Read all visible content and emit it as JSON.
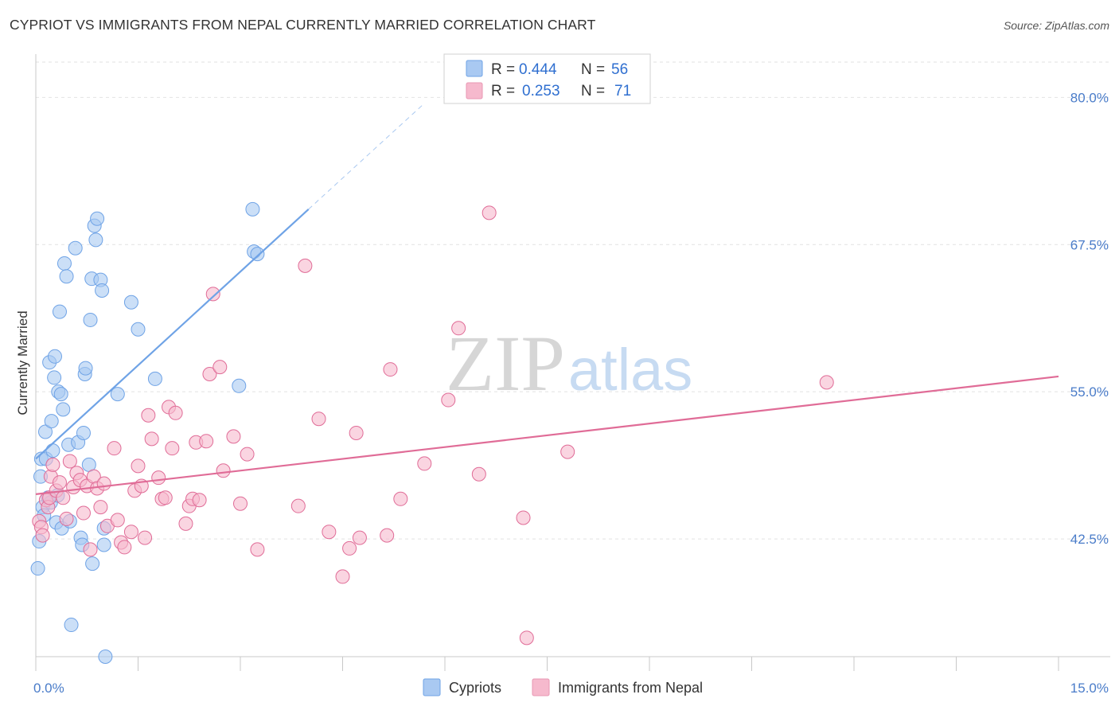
{
  "header": {
    "title": "CYPRIOT VS IMMIGRANTS FROM NEPAL CURRENTLY MARRIED CORRELATION CHART",
    "source": "Source: ZipAtlas.com"
  },
  "watermark": {
    "part1": "ZIP",
    "part2": "atlas"
  },
  "legend": {
    "r_label": "R =",
    "n_label": "N =",
    "entries": [
      {
        "r": "0.444",
        "n": "56",
        "color": "#a9c9f2"
      },
      {
        "r": "0.253",
        "n": "71",
        "color": "#f6b9cd"
      }
    ]
  },
  "bottom_legend": [
    "Cypriots",
    "Immigrants from Nepal"
  ],
  "chart_data": {
    "type": "scatter",
    "title": "CYPRIOT VS IMMIGRANTS FROM NEPAL CURRENTLY MARRIED CORRELATION CHART",
    "xlabel": "",
    "ylabel": "Currently Married",
    "xlim": [
      0,
      15
    ],
    "ylim": [
      32.5,
      83.0
    ],
    "y_ticks": [
      {
        "value": 42.5,
        "label": "42.5%"
      },
      {
        "value": 55.0,
        "label": "55.0%"
      },
      {
        "value": 67.5,
        "label": "67.5%"
      },
      {
        "value": 80.0,
        "label": "80.0%"
      }
    ],
    "x_ticks": [
      {
        "value": 0,
        "label": "0.0%"
      },
      {
        "value": 15,
        "label": "15.0%"
      }
    ],
    "grid": "horizontal dashed",
    "legend_position": "top-center",
    "series": [
      {
        "name": "Cypriots",
        "color": "#6fa3e6",
        "fill": "#a9c9f2",
        "r": 0.444,
        "n": 56,
        "trend": {
          "x0": 0.0,
          "y0": 49.3,
          "x1": 4.0,
          "y1": 70.5,
          "dashed_to_x": 5.7,
          "dashed_to_y": 79.5
        },
        "points": [
          [
            0.03,
            40.0
          ],
          [
            0.05,
            42.3
          ],
          [
            0.07,
            47.8
          ],
          [
            0.08,
            49.3
          ],
          [
            0.1,
            45.2
          ],
          [
            0.12,
            44.5
          ],
          [
            0.14,
            51.6
          ],
          [
            0.15,
            49.3
          ],
          [
            0.18,
            46.0
          ],
          [
            0.2,
            57.5
          ],
          [
            0.22,
            45.6
          ],
          [
            0.23,
            52.5
          ],
          [
            0.25,
            50.0
          ],
          [
            0.27,
            56.2
          ],
          [
            0.28,
            58.0
          ],
          [
            0.3,
            43.9
          ],
          [
            0.32,
            46.2
          ],
          [
            0.33,
            55.0
          ],
          [
            0.35,
            61.8
          ],
          [
            0.37,
            54.8
          ],
          [
            0.38,
            43.4
          ],
          [
            0.4,
            53.5
          ],
          [
            0.42,
            65.9
          ],
          [
            0.45,
            64.8
          ],
          [
            0.48,
            50.5
          ],
          [
            0.5,
            44.0
          ],
          [
            0.52,
            35.2
          ],
          [
            0.58,
            67.2
          ],
          [
            0.62,
            50.7
          ],
          [
            0.66,
            42.6
          ],
          [
            0.68,
            42.0
          ],
          [
            0.7,
            51.5
          ],
          [
            0.72,
            56.5
          ],
          [
            0.73,
            57.0
          ],
          [
            0.78,
            48.8
          ],
          [
            0.8,
            61.1
          ],
          [
            0.82,
            64.6
          ],
          [
            0.83,
            40.4
          ],
          [
            0.86,
            69.1
          ],
          [
            0.88,
            67.9
          ],
          [
            0.9,
            69.7
          ],
          [
            0.95,
            64.5
          ],
          [
            0.97,
            63.6
          ],
          [
            1.0,
            43.4
          ],
          [
            1.0,
            42.0
          ],
          [
            1.02,
            32.5
          ],
          [
            1.2,
            54.8
          ],
          [
            1.4,
            62.6
          ],
          [
            1.5,
            60.3
          ],
          [
            1.75,
            56.1
          ],
          [
            2.98,
            55.5
          ],
          [
            3.18,
            70.5
          ],
          [
            3.2,
            66.9
          ],
          [
            3.25,
            66.7
          ]
        ]
      },
      {
        "name": "Immigrants from Nepal",
        "color": "#e06c97",
        "fill": "#f6b9cd",
        "r": 0.253,
        "n": 71,
        "trend": {
          "x0": 0.0,
          "y0": 46.3,
          "x1": 15.0,
          "y1": 56.3
        },
        "points": [
          [
            0.05,
            44.0
          ],
          [
            0.08,
            43.5
          ],
          [
            0.1,
            42.8
          ],
          [
            0.15,
            45.8
          ],
          [
            0.18,
            45.2
          ],
          [
            0.2,
            46.0
          ],
          [
            0.22,
            47.8
          ],
          [
            0.25,
            48.8
          ],
          [
            0.3,
            46.6
          ],
          [
            0.35,
            47.3
          ],
          [
            0.4,
            46.0
          ],
          [
            0.45,
            44.2
          ],
          [
            0.5,
            49.1
          ],
          [
            0.55,
            46.9
          ],
          [
            0.6,
            48.1
          ],
          [
            0.65,
            47.5
          ],
          [
            0.7,
            44.7
          ],
          [
            0.75,
            47.0
          ],
          [
            0.8,
            41.6
          ],
          [
            0.85,
            47.8
          ],
          [
            0.9,
            46.8
          ],
          [
            0.95,
            45.2
          ],
          [
            1.0,
            47.2
          ],
          [
            1.05,
            43.6
          ],
          [
            1.15,
            50.2
          ],
          [
            1.2,
            44.1
          ],
          [
            1.25,
            42.2
          ],
          [
            1.3,
            41.8
          ],
          [
            1.4,
            43.1
          ],
          [
            1.45,
            46.6
          ],
          [
            1.5,
            48.7
          ],
          [
            1.55,
            47.0
          ],
          [
            1.6,
            42.6
          ],
          [
            1.65,
            53.0
          ],
          [
            1.7,
            51.0
          ],
          [
            1.8,
            47.7
          ],
          [
            1.85,
            45.9
          ],
          [
            1.9,
            46.0
          ],
          [
            1.95,
            53.7
          ],
          [
            2.0,
            50.2
          ],
          [
            2.05,
            53.2
          ],
          [
            2.2,
            43.8
          ],
          [
            2.25,
            45.3
          ],
          [
            2.3,
            45.9
          ],
          [
            2.35,
            50.7
          ],
          [
            2.4,
            45.8
          ],
          [
            2.5,
            50.8
          ],
          [
            2.55,
            56.5
          ],
          [
            2.6,
            63.3
          ],
          [
            2.7,
            57.1
          ],
          [
            2.75,
            48.3
          ],
          [
            2.9,
            51.2
          ],
          [
            3.0,
            45.5
          ],
          [
            3.1,
            49.7
          ],
          [
            3.25,
            41.6
          ],
          [
            3.95,
            65.7
          ],
          [
            3.85,
            45.3
          ],
          [
            4.15,
            52.7
          ],
          [
            4.3,
            43.1
          ],
          [
            4.5,
            39.3
          ],
          [
            4.6,
            41.7
          ],
          [
            4.7,
            51.5
          ],
          [
            4.75,
            42.6
          ],
          [
            5.15,
            42.8
          ],
          [
            5.2,
            56.9
          ],
          [
            5.35,
            45.9
          ],
          [
            5.7,
            48.9
          ],
          [
            6.05,
            54.3
          ],
          [
            6.2,
            60.4
          ],
          [
            6.5,
            48.0
          ],
          [
            6.65,
            70.2
          ],
          [
            7.15,
            44.3
          ],
          [
            7.2,
            34.1
          ],
          [
            7.8,
            49.9
          ],
          [
            11.6,
            55.8
          ]
        ]
      }
    ]
  }
}
